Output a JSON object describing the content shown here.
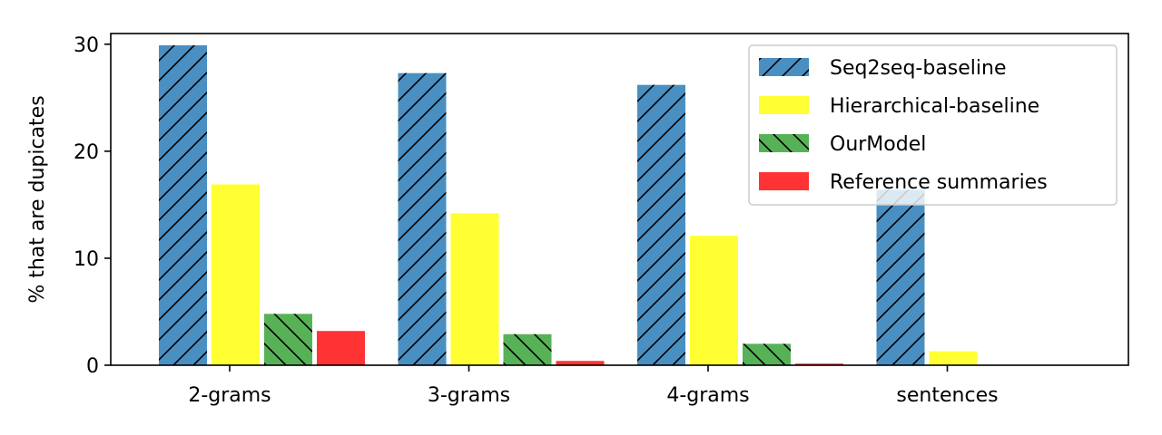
{
  "chart_data": {
    "type": "bar",
    "title": "",
    "xlabel": "",
    "ylabel": "% that are dupicates",
    "categories": [
      "2-grams",
      "3-grams",
      "4-grams",
      "sentences"
    ],
    "ylim": [
      0,
      31
    ],
    "yticks": [
      0,
      10,
      20,
      30
    ],
    "grid": false,
    "legend_position": "top-right",
    "series": [
      {
        "name": "Seq2seq-baseline",
        "color": "#4a8fc2",
        "hatch": "forward-diagonal",
        "values": [
          29.9,
          27.3,
          26.2,
          16.4
        ]
      },
      {
        "name": "Hierarchical-baseline",
        "color": "#ffff33",
        "hatch": "none",
        "values": [
          16.9,
          14.2,
          12.1,
          1.3
        ]
      },
      {
        "name": "OurModel",
        "color": "#57b257",
        "hatch": "back-diagonal",
        "values": [
          4.8,
          2.9,
          2.0,
          0.0
        ]
      },
      {
        "name": "Reference summaries",
        "color": "#ff3333",
        "hatch": "none",
        "values": [
          3.2,
          0.4,
          0.15,
          0.0
        ]
      }
    ]
  }
}
